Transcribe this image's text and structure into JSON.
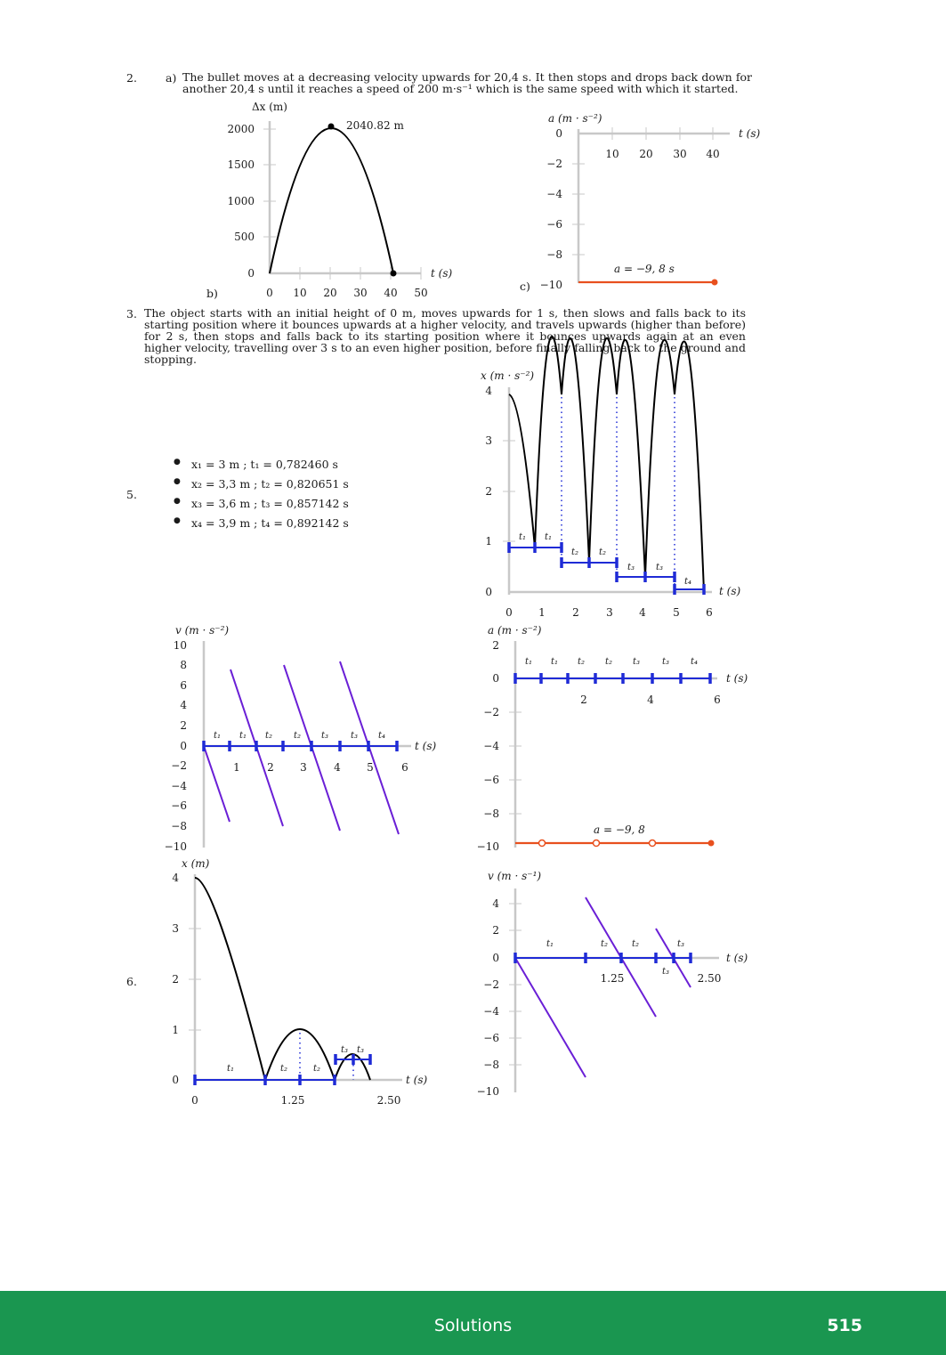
{
  "q2": {
    "number": "2.",
    "part_a_label": "a)",
    "part_a_text": "The bullet moves at a decreasing velocity upwards for 20,4 s. It then stops and drops back down for another 20,4 s until it reaches a speed of 200 m·s⁻¹ which is the same speed with which it started.",
    "part_b_label": "b)",
    "part_c_label": "c)"
  },
  "q3": {
    "number": "3.",
    "text": "The object starts with an initial height of 0 m, moves upwards for 1 s, then slows and falls back to its starting position where it bounces upwards at a higher velocity, and travels upwards (higher than before) for 2 s, then stops and falls back to its starting position where it bounces upwards again at an even higher velocity, travelling over 3 s to an even higher position, before finally falling back to the ground and stopping."
  },
  "q5": {
    "number": "5.",
    "items": [
      "x₁ = 3 m ; t₁ = 0,782460 s",
      "x₂ = 3,3 m ; t₂ = 0,820651 s",
      "x₃ = 3,6 m ; t₃ = 0,857142 s",
      "x₄ = 3,9 m ; t₄ = 0,892142 s"
    ]
  },
  "q6": {
    "number": "6."
  },
  "footer": {
    "title": "Solutions",
    "page": "515"
  },
  "chart_data": [
    {
      "id": "2b-displacement",
      "type": "line",
      "ylabel": "Δx (m)",
      "xlabel": "t (s)",
      "xticks": [
        "0",
        "10",
        "20",
        "30",
        "40",
        "50"
      ],
      "yticks": [
        "0",
        "500",
        "1000",
        "1500",
        "2000"
      ],
      "xlim": [
        0,
        50
      ],
      "ylim": [
        0,
        2000
      ],
      "x": [
        0,
        20.4,
        40.8
      ],
      "y": [
        0,
        2040.82,
        0
      ],
      "annotation": "2040.82 m"
    },
    {
      "id": "2c-acceleration",
      "type": "line",
      "ylabel": "a (m · s⁻²)",
      "xlabel": "t (s)",
      "xticks": [
        "10",
        "20",
        "30",
        "40"
      ],
      "yticks": [
        "0",
        "−2",
        "−4",
        "−6",
        "−8",
        "−10"
      ],
      "xlim": [
        0,
        45
      ],
      "ylim": [
        -10,
        0
      ],
      "x": [
        0,
        40.8
      ],
      "y": [
        -9.8,
        -9.8
      ],
      "annotation": "a = −9, 8 s"
    },
    {
      "id": "3-position",
      "type": "line",
      "ylabel": "x (m · s⁻²)",
      "xlabel": "t (s)",
      "xticks": [
        "0",
        "1",
        "2",
        "3",
        "4",
        "5",
        "6"
      ],
      "yticks": [
        "0",
        "1",
        "2",
        "3",
        "4"
      ],
      "xlim": [
        0,
        6
      ],
      "ylim": [
        0,
        4
      ],
      "peaks_x": [
        1.55,
        3.2,
        4.95
      ],
      "zeros_x": [
        0.78,
        2.4,
        4.1,
        5.84
      ],
      "peak_y": 3.9,
      "interval_labels": [
        "t₁",
        "t₁",
        "t₂",
        "t₂",
        "t₃",
        "t₃",
        "t₄"
      ]
    },
    {
      "id": "5-velocity",
      "type": "line",
      "ylabel": "v (m · s⁻²)",
      "xlabel": "t (s)",
      "xticks": [
        "1",
        "2",
        "3",
        "4",
        "5",
        "6"
      ],
      "yticks": [
        "10",
        "8",
        "6",
        "4",
        "2",
        "0",
        "−2",
        "−4",
        "−6",
        "−8",
        "−10"
      ],
      "xlim": [
        0,
        6
      ],
      "ylim": [
        -10,
        10
      ],
      "interval_labels": [
        "t₁",
        "t₁",
        "t₂",
        "t₂",
        "t₃",
        "t₃",
        "t₄"
      ]
    },
    {
      "id": "5-acceleration",
      "type": "line",
      "ylabel": "a (m · s⁻²)",
      "xlabel": "t (s)",
      "xticks": [
        "2",
        "4",
        "6"
      ],
      "yticks": [
        "2",
        "0",
        "−2",
        "−4",
        "−6",
        "−8",
        "−10"
      ],
      "xlim": [
        0,
        6
      ],
      "ylim": [
        -10,
        2
      ],
      "x": [
        0,
        6
      ],
      "y": [
        -9.8,
        -9.8
      ],
      "annotation": "a = −9, 8",
      "interval_labels": [
        "t₁",
        "t₁",
        "t₂",
        "t₂",
        "t₃",
        "t₃",
        "t₄"
      ]
    },
    {
      "id": "6-position",
      "type": "line",
      "ylabel": "x (m)",
      "xlabel": "t (s)",
      "xticks": [
        "0",
        "1.25",
        "2.50"
      ],
      "yticks": [
        "0",
        "1",
        "2",
        "3",
        "4"
      ],
      "xlim": [
        0,
        2.5
      ],
      "ylim": [
        0,
        4
      ],
      "interval_labels": [
        "t₁",
        "t₂",
        "t₂",
        "t₃",
        "t₃"
      ]
    },
    {
      "id": "6-velocity",
      "type": "line",
      "ylabel": "v (m · s⁻¹)",
      "xlabel": "t (s)",
      "xticks": [
        "1.25",
        "2.50"
      ],
      "yticks": [
        "4",
        "2",
        "0",
        "−2",
        "−4",
        "−6",
        "−8",
        "−10"
      ],
      "xlim": [
        0,
        2.5
      ],
      "ylim": [
        -10,
        4
      ],
      "interval_labels": [
        "t₁",
        "t₂",
        "t₂",
        "t₃",
        "t₃"
      ]
    }
  ]
}
